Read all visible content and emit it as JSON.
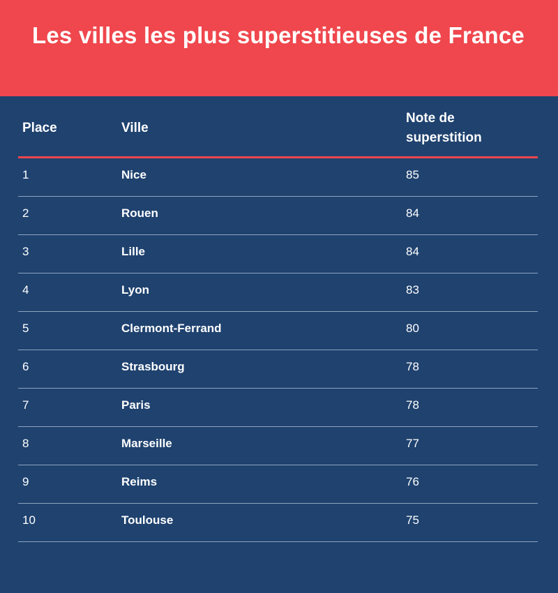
{
  "title": "Les villes les plus superstitieuses de France",
  "colors": {
    "header_bg": "#ef474d",
    "table_bg": "#1f426f",
    "divider": "#8fa4c0",
    "text": "#ffffff"
  },
  "chart_data": {
    "type": "table",
    "title": "Les villes les plus superstitieuses de France",
    "columns": [
      "Place",
      "Ville",
      "Note de superstition"
    ],
    "rows": [
      {
        "place": "1",
        "ville": "Nice",
        "note": "85"
      },
      {
        "place": "2",
        "ville": "Rouen",
        "note": "84"
      },
      {
        "place": "3",
        "ville": "Lille",
        "note": "84"
      },
      {
        "place": "4",
        "ville": "Lyon",
        "note": "83"
      },
      {
        "place": "5",
        "ville": "Clermont-Ferrand",
        "note": "80"
      },
      {
        "place": "6",
        "ville": "Strasbourg",
        "note": "78"
      },
      {
        "place": "7",
        "ville": "Paris",
        "note": "78"
      },
      {
        "place": "8",
        "ville": "Marseille",
        "note": "77"
      },
      {
        "place": "9",
        "ville": "Reims",
        "note": "76"
      },
      {
        "place": "10",
        "ville": "Toulouse",
        "note": "75"
      }
    ]
  }
}
